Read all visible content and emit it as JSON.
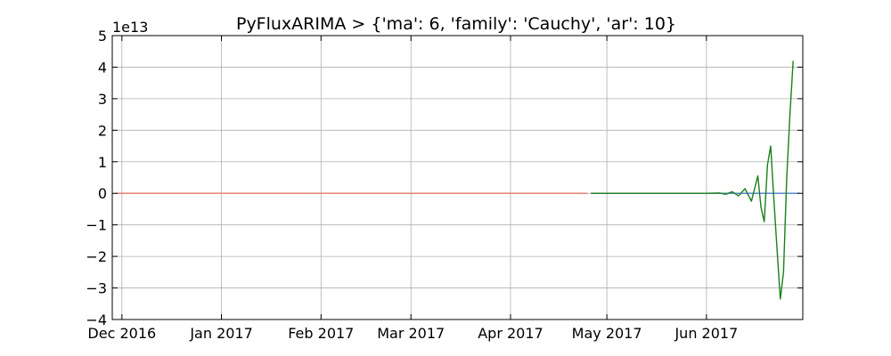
{
  "chart_data": {
    "type": "line",
    "title": "PyFluxARIMA > {'ma': 6, 'family': 'Cauchy', 'ar': 10}",
    "xlabel": "",
    "ylabel": "",
    "y_offset_label": "1e13",
    "y_multiplier": 10000000000000.0,
    "xlim": [
      "2016-11-28",
      "2017-07-01"
    ],
    "ylim": [
      -4,
      5
    ],
    "grid": true,
    "x_ticks": [
      {
        "date": "2016-12-01",
        "label": "Dec 2016"
      },
      {
        "date": "2017-01-01",
        "label": "Jan 2017"
      },
      {
        "date": "2017-02-01",
        "label": "Feb 2017"
      },
      {
        "date": "2017-03-01",
        "label": "Mar 2017"
      },
      {
        "date": "2017-04-01",
        "label": "Apr 2017"
      },
      {
        "date": "2017-05-01",
        "label": "May 2017"
      },
      {
        "date": "2017-06-01",
        "label": "Jun 2017"
      }
    ],
    "y_ticks": [
      {
        "value": 5,
        "label": "5"
      },
      {
        "value": 4,
        "label": "4"
      },
      {
        "value": 3,
        "label": "3"
      },
      {
        "value": 2,
        "label": "2"
      },
      {
        "value": 1,
        "label": "1"
      },
      {
        "value": 0,
        "label": "0"
      },
      {
        "value": -1,
        "label": "−1"
      },
      {
        "value": -2,
        "label": "−2"
      },
      {
        "value": -3,
        "label": "−3"
      },
      {
        "value": -4,
        "label": "−4"
      }
    ],
    "series": [
      {
        "color": "#e8796a",
        "points": [
          [
            "2016-11-29",
            0
          ],
          [
            "2017-04-25",
            0
          ]
        ]
      },
      {
        "color": "#4a7ecf",
        "points": [
          [
            "2017-04-26",
            0
          ],
          [
            "2017-06-30",
            0
          ]
        ]
      },
      {
        "color": "#1a7f1a",
        "points": [
          [
            "2017-04-26",
            0.0
          ],
          [
            "2017-06-01",
            0.0
          ],
          [
            "2017-06-05",
            0.01
          ],
          [
            "2017-06-07",
            -0.03
          ],
          [
            "2017-06-09",
            0.05
          ],
          [
            "2017-06-11",
            -0.08
          ],
          [
            "2017-06-13",
            0.15
          ],
          [
            "2017-06-15",
            -0.25
          ],
          [
            "2017-06-17",
            0.55
          ],
          [
            "2017-06-18",
            -0.45
          ],
          [
            "2017-06-19",
            -0.9
          ],
          [
            "2017-06-20",
            0.9
          ],
          [
            "2017-06-21",
            1.5
          ],
          [
            "2017-06-22",
            -0.2
          ],
          [
            "2017-06-23",
            -1.8
          ],
          [
            "2017-06-24",
            -3.35
          ],
          [
            "2017-06-25",
            -2.5
          ],
          [
            "2017-06-26",
            0.5
          ],
          [
            "2017-06-27",
            2.5
          ],
          [
            "2017-06-28",
            4.2
          ]
        ]
      }
    ]
  }
}
